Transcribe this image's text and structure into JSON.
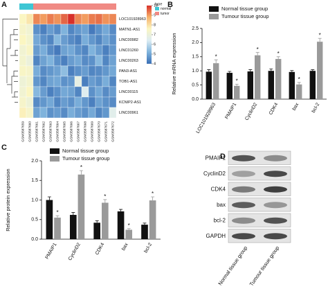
{
  "chart_data": [
    {
      "type": "heatmap",
      "panel": "A",
      "rows": [
        "LOC101928963",
        "MATN1-AS1",
        "LINC00982",
        "LINC01260",
        "LINC00263",
        "PAN3-AS1",
        "TOB1-AS1",
        "LINC00115",
        "KCNIP2-AS1",
        "LINC00961"
      ],
      "columns": [
        "GSM3587659",
        "GSM3587660",
        "GSM3587661",
        "GSM3587662",
        "GSM3587663",
        "GSM3587664",
        "GSM3587665",
        "GSM3587666",
        "GSM3587667",
        "GSM3587668",
        "GSM3587669",
        "GSM3587670",
        "GSM3587671",
        "GSM3587672"
      ],
      "column_types": [
        "normal",
        "normal",
        "tumor",
        "tumor",
        "tumor",
        "tumor",
        "tumor",
        "tumor",
        "tumor",
        "tumor",
        "tumor",
        "tumor",
        "tumor",
        "tumor"
      ],
      "type_legend": {
        "title": "type",
        "items": [
          {
            "name": "normal",
            "color": "#3ec6d4"
          },
          {
            "name": "tumor",
            "color": "#f08a84"
          }
        ]
      },
      "values": [
        [
          7.6,
          7.9,
          9.2,
          9.0,
          9.3,
          9.1,
          9.5,
          10,
          9.2,
          9.0,
          9.3,
          9.4,
          9.1,
          9.2
        ],
        [
          7.4,
          7.2,
          4.6,
          4.3,
          4.8,
          4.5,
          5.2,
          4.4,
          4.7,
          4.9,
          4.2,
          4.6,
          5.0,
          4.5
        ],
        [
          7.6,
          7.3,
          5.0,
          4.6,
          4.4,
          5.3,
          4.8,
          4.5,
          4.3,
          5.1,
          4.7,
          4.4,
          4.9,
          4.6
        ],
        [
          7.2,
          7.5,
          4.8,
          5.1,
          4.5,
          4.2,
          4.9,
          5.0,
          4.6,
          4.4,
          5.2,
          4.8,
          4.3,
          4.7
        ],
        [
          7.3,
          7.0,
          4.4,
          4.9,
          5.2,
          4.6,
          4.3,
          4.8,
          5.0,
          4.5,
          4.6,
          5.3,
          4.4,
          4.9
        ],
        [
          7.5,
          7.4,
          5.1,
          4.5,
          4.7,
          4.9,
          5.4,
          4.3,
          4.6,
          4.8,
          4.4,
          4.5,
          4.7,
          5.0
        ],
        [
          7.1,
          7.3,
          4.7,
          4.4,
          4.9,
          5.0,
          4.6,
          4.7,
          6.8,
          4.3,
          4.8,
          4.6,
          5.1,
          4.4
        ],
        [
          7.2,
          7.6,
          5.3,
          4.8,
          4.3,
          4.6,
          5.0,
          4.9,
          4.4,
          6.5,
          4.6,
          5.0,
          4.5,
          4.8
        ],
        [
          7.4,
          7.1,
          4.5,
          4.7,
          5.0,
          4.4,
          4.8,
          4.6,
          5.1,
          4.7,
          4.3,
          4.9,
          4.6,
          4.5
        ],
        [
          7.7,
          7.4,
          4.9,
          5.2,
          4.6,
          4.8,
          4.5,
          5.1,
          4.8,
          4.6,
          5.0,
          4.4,
          4.7,
          6.6
        ]
      ],
      "zlim": [
        4,
        10
      ],
      "zticks": [
        10,
        9,
        8,
        7,
        6,
        5,
        4
      ],
      "colormap": [
        "#3a6fb5",
        "#7fb3dc",
        "#dcecf3",
        "#fbf6c2",
        "#f7b26a",
        "#d7302a"
      ]
    },
    {
      "type": "bar",
      "panel": "B",
      "ylabel": "Relative mRNA expression",
      "categories": [
        "LOC101928963",
        "PMAIP1",
        "CyclinD2",
        "CDK4",
        "bax",
        "bcl-2"
      ],
      "series": [
        {
          "name": "Normal tissue group",
          "color": "#111111",
          "values": [
            0.97,
            0.93,
            0.98,
            1.0,
            0.96,
            1.0
          ],
          "errors": [
            0.07,
            0.05,
            0.06,
            0.07,
            0.05,
            0.04
          ]
        },
        {
          "name": "Tumour tissue group",
          "color": "#9a9a9a",
          "values": [
            1.27,
            0.47,
            1.55,
            1.42,
            0.52,
            2.03
          ],
          "errors": [
            0.12,
            0.06,
            0.1,
            0.08,
            0.07,
            0.12
          ],
          "significance": [
            "*",
            "*",
            "*",
            "*",
            "*",
            "*"
          ]
        }
      ],
      "ylim": [
        0,
        2.5
      ],
      "yticks": [
        {
          "value": 0,
          "label": "0.0"
        },
        0.5,
        {
          "value": 1,
          "label": "1.0"
        },
        1.5,
        {
          "value": 2,
          "label": "2.0"
        },
        2.5
      ]
    },
    {
      "type": "bar",
      "panel": "C",
      "ylabel": "Relative protein expression",
      "categories": [
        "PMAIP1",
        "CyclinD2",
        "CDK4",
        "bax",
        "bcl-2"
      ],
      "series": [
        {
          "name": "Normal tissue group",
          "color": "#111111",
          "values": [
            1.0,
            0.62,
            0.42,
            0.71,
            0.37
          ],
          "errors": [
            0.08,
            0.06,
            0.05,
            0.05,
            0.04
          ]
        },
        {
          "name": "Tumour tissue group",
          "color": "#9a9a9a",
          "values": [
            0.55,
            1.65,
            0.93,
            0.24,
            0.99
          ],
          "errors": [
            0.05,
            0.1,
            0.08,
            0.03,
            0.09
          ],
          "significance": [
            "*",
            "*",
            "*",
            "*",
            "*"
          ]
        }
      ],
      "ylim": [
        0,
        2
      ],
      "yticks": [
        {
          "value": 0,
          "label": "0.0"
        },
        0.5,
        {
          "value": 1,
          "label": "1.0"
        },
        1.5,
        {
          "value": 2,
          "label": "2.0"
        }
      ]
    },
    {
      "type": "blot",
      "panel": "D",
      "rows": [
        "PMAIP1",
        "CyclinD2",
        "CDK4",
        "bax",
        "bcl-2",
        "GAPDH"
      ],
      "columns": [
        "Normal tissue group",
        "Tumour tissue group"
      ]
    }
  ]
}
